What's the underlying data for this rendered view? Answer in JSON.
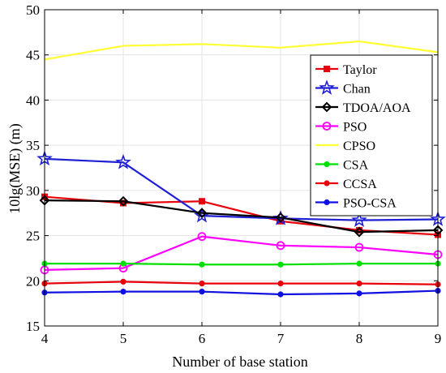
{
  "chart_data": {
    "type": "line",
    "xlabel": "Number of base station",
    "ylabel": "10lg(MSE) (m)",
    "x": [
      4,
      5,
      6,
      7,
      8,
      9
    ],
    "xlim": [
      4,
      9
    ],
    "ylim": [
      15,
      50
    ],
    "xticks": [
      "4",
      "5",
      "6",
      "7",
      "8",
      "9"
    ],
    "yticks": [
      "15",
      "20",
      "25",
      "30",
      "35",
      "40",
      "45",
      "50"
    ],
    "grid": true,
    "legend_position": "top-right",
    "series": [
      {
        "name": "Taylor",
        "color": "#e8000b",
        "marker": "square",
        "values": [
          29.3,
          28.6,
          28.8,
          26.6,
          25.6,
          25.1
        ]
      },
      {
        "name": "Chan",
        "color": "#1f1fd4",
        "marker": "star",
        "values": [
          33.5,
          33.1,
          27.2,
          26.9,
          26.7,
          26.8
        ]
      },
      {
        "name": "TDOA/AOA",
        "color": "#000000",
        "marker": "diamond",
        "values": [
          28.9,
          28.8,
          27.5,
          27.0,
          25.4,
          25.6
        ]
      },
      {
        "name": "PSO",
        "color": "#ff00ff",
        "marker": "circle-open",
        "values": [
          21.2,
          21.4,
          24.9,
          23.9,
          23.7,
          22.9
        ]
      },
      {
        "name": "CPSO",
        "color": "#ffff33",
        "marker": "none",
        "values": [
          44.5,
          46.0,
          46.2,
          45.8,
          46.5,
          45.3
        ]
      },
      {
        "name": "CSA",
        "color": "#00e000",
        "marker": "dot",
        "values": [
          21.9,
          21.9,
          21.8,
          21.8,
          21.9,
          21.9
        ]
      },
      {
        "name": "CCSA",
        "color": "#e8000b",
        "marker": "dot",
        "values": [
          19.7,
          19.9,
          19.7,
          19.7,
          19.7,
          19.6
        ]
      },
      {
        "name": "PSO-CSA",
        "color": "#1010e0",
        "marker": "dot",
        "values": [
          18.7,
          18.8,
          18.8,
          18.5,
          18.6,
          18.9
        ]
      }
    ]
  }
}
